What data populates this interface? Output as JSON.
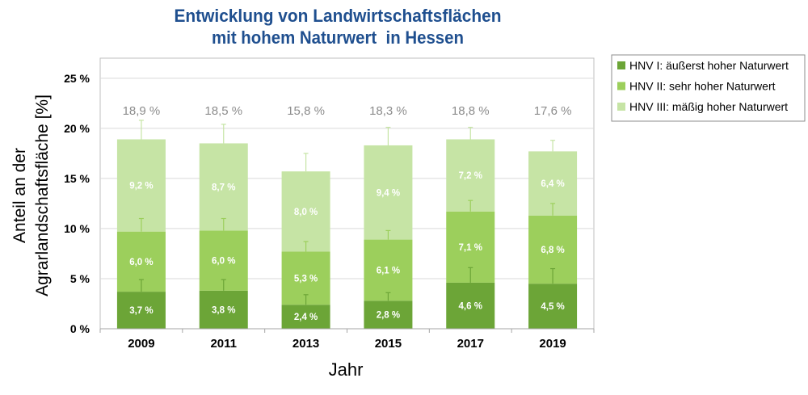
{
  "chart_data": {
    "type": "bar",
    "stacked": true,
    "title": [
      "Entwicklung von Landwirtschaftsflächen",
      "mit hohem Naturwert  in Hessen"
    ],
    "xlabel": "Jahr",
    "ylabel": [
      "Anteil an der",
      "Agrarlandschaftsfläche [%]"
    ],
    "categories": [
      "2009",
      "2011",
      "2013",
      "2015",
      "2017",
      "2019"
    ],
    "ylim": [
      0,
      27
    ],
    "yticks": [
      0,
      5,
      10,
      15,
      20,
      25
    ],
    "ytick_labels": [
      "0 %",
      "5 %",
      "10 %",
      "15 %",
      "20 %",
      "25 %"
    ],
    "grid": true,
    "legend_position": "right",
    "series": [
      {
        "name": "HNV I: äußerst hoher Naturwert",
        "color": "#6ca537",
        "values": [
          3.7,
          3.8,
          2.4,
          2.8,
          4.6,
          4.5
        ],
        "labels": [
          "3,7 %",
          "3,8 %",
          "2,4 %",
          "2,8 %",
          "4,6 %",
          "4,5 %"
        ],
        "error_upper": [
          4.9,
          4.9,
          3.4,
          3.6,
          6.1,
          6.0
        ]
      },
      {
        "name": "HNV II: sehr hoher Naturwert",
        "color": "#9ccf5c",
        "values": [
          6.0,
          6.0,
          5.3,
          6.1,
          7.1,
          6.8
        ],
        "labels": [
          "6,0 %",
          "6,0 %",
          "5,3 %",
          "6,1 %",
          "7,1 %",
          "6,8 %"
        ],
        "error_upper": [
          11.0,
          11.0,
          8.7,
          9.8,
          12.8,
          12.5
        ]
      },
      {
        "name": "HNV III: mäßig hoher Naturwert",
        "color": "#c6e4a5",
        "values": [
          9.2,
          8.7,
          8.0,
          9.4,
          7.2,
          6.4
        ],
        "labels": [
          "9,2 %",
          "8,7 %",
          "8,0 %",
          "9,4 %",
          "7,2 %",
          "6,4 %"
        ],
        "error_upper": [
          20.8,
          20.4,
          17.5,
          20.1,
          20.1,
          18.8
        ]
      }
    ],
    "total_labels": [
      "18,9 %",
      "18,5 %",
      "15,8 %",
      "18,3 %",
      "18,8 %",
      "17,6 %"
    ]
  },
  "colors": {
    "title": "#1f4f8f",
    "gridline": "#d9d9d9",
    "frame": "#bfbfbf",
    "axis": "#a6a6a6",
    "legend_border": "#8c8c8c"
  }
}
